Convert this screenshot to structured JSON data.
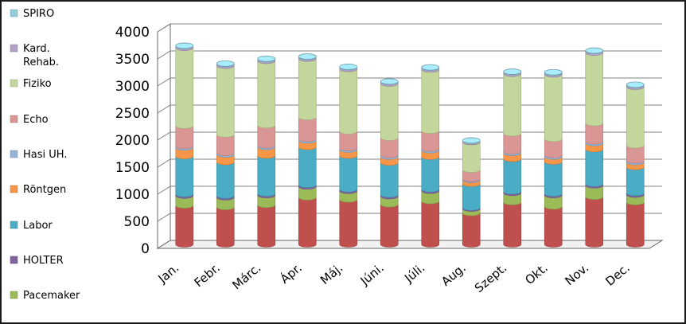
{
  "chart_data": {
    "type": "bar",
    "stacked": true,
    "three_d": true,
    "categories": [
      "Jan.",
      "Febr.",
      "Márc.",
      "Ápr.",
      "Máj.",
      "Júni.",
      "Júli.",
      "Aug.",
      "Szept.",
      "Okt.",
      "Nov.",
      "Dec."
    ],
    "ylim": [
      0,
      4000
    ],
    "yticks": [
      "0",
      "500",
      "1000",
      "1500",
      "2000",
      "2500",
      "3000",
      "3500",
      "4000"
    ],
    "grid": true,
    "legend_position": "left",
    "series": [
      {
        "name": "",
        "color": "#c0504d",
        "values": [
          720,
          690,
          730,
          870,
          830,
          740,
          800,
          580,
          780,
          700,
          880,
          780
        ]
      },
      {
        "name": "Pacemaker",
        "color": "#9bbb59",
        "values": [
          180,
          180,
          180,
          200,
          160,
          150,
          190,
          80,
          170,
          210,
          210,
          140
        ]
      },
      {
        "name": "HOLTER",
        "color": "#8064a2",
        "values": [
          30,
          30,
          30,
          30,
          30,
          30,
          30,
          20,
          30,
          30,
          30,
          30
        ]
      },
      {
        "name": "Labor",
        "color": "#4bacc6",
        "values": [
          700,
          620,
          700,
          700,
          620,
          590,
          600,
          440,
          600,
          590,
          640,
          480
        ]
      },
      {
        "name": "Röntgen",
        "color": "#f79646",
        "values": [
          160,
          140,
          160,
          120,
          110,
          110,
          120,
          70,
          110,
          90,
          110,
          90
        ]
      },
      {
        "name": "Hasi UH.",
        "color": "#95b3d7",
        "values": [
          30,
          30,
          30,
          30,
          30,
          30,
          30,
          20,
          30,
          30,
          30,
          30
        ]
      },
      {
        "name": "Echo",
        "color": "#da9694",
        "values": [
          370,
          340,
          370,
          400,
          310,
          320,
          330,
          170,
          330,
          300,
          340,
          280
        ]
      },
      {
        "name": "Fiziko",
        "color": "#c3d69b",
        "values": [
          1440,
          1270,
          1190,
          1080,
          1150,
          1000,
          1130,
          510,
          1100,
          1190,
          1300,
          1080
        ]
      },
      {
        "name": "Kard. Rehab.",
        "color": "#b3a2c7",
        "values": [
          30,
          30,
          30,
          30,
          30,
          30,
          30,
          20,
          30,
          30,
          30,
          30
        ]
      },
      {
        "name": "SPIRO",
        "color": "#93cddd",
        "values": [
          10,
          10,
          10,
          10,
          10,
          10,
          10,
          10,
          10,
          10,
          10,
          10
        ]
      }
    ],
    "legend": [
      {
        "label": "SPIRO",
        "color": "#93cddd"
      },
      {
        "label": "Kard.",
        "label2": "Rehab.",
        "color": "#b3a2c7"
      },
      {
        "label": "Fiziko",
        "color": "#c3d69b"
      },
      {
        "label": "Echo",
        "color": "#da9694"
      },
      {
        "label": "Hasi UH.",
        "color": "#95b3d7"
      },
      {
        "label": "Röntgen",
        "color": "#f79646"
      },
      {
        "label": "Labor",
        "color": "#4bacc6"
      },
      {
        "label": "HOLTER",
        "color": "#8064a2"
      },
      {
        "label": "Pacemaker",
        "color": "#9bbb59"
      }
    ]
  }
}
